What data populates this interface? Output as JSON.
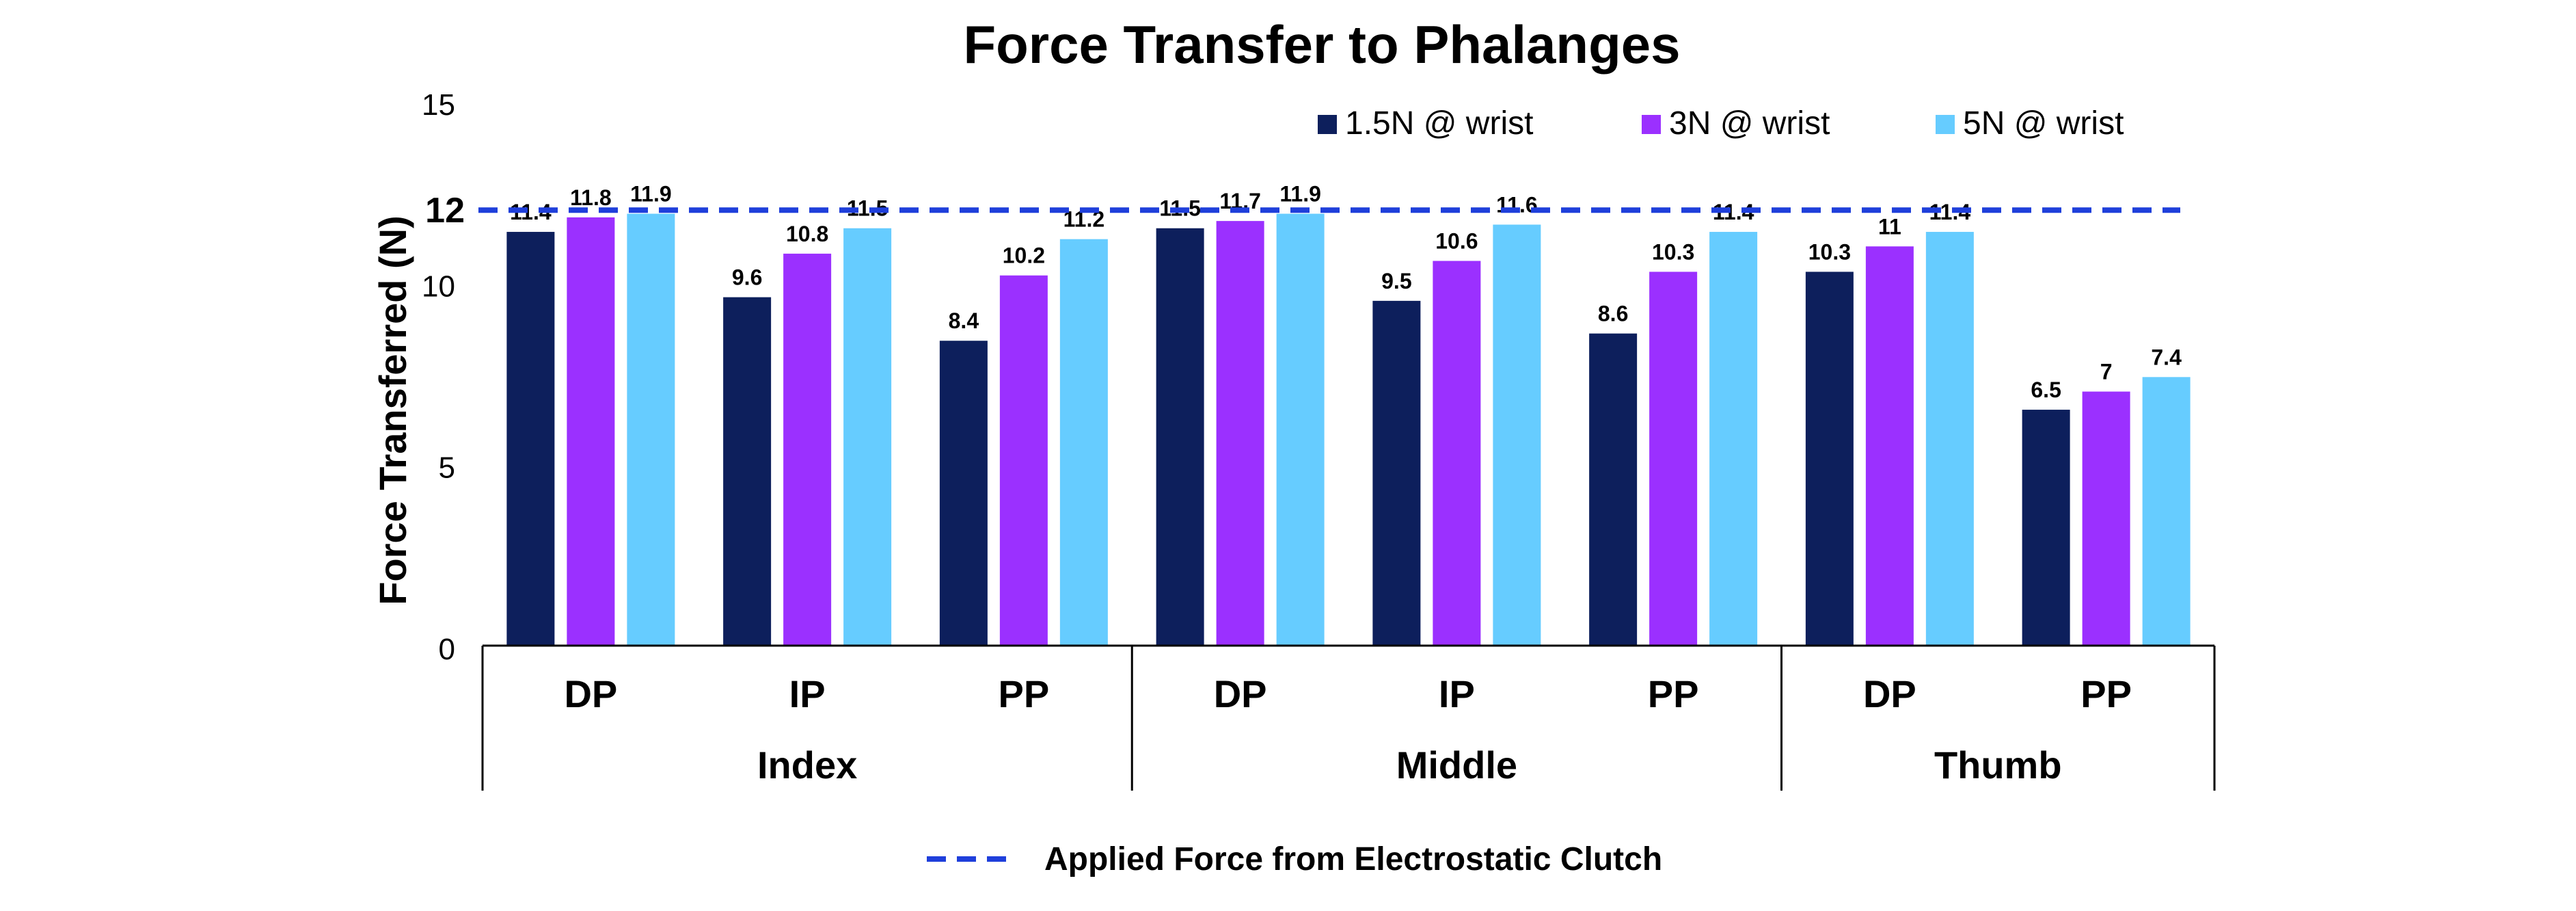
{
  "chart_data": {
    "type": "bar",
    "title": "Force Transfer to Phalanges",
    "ylabel": "Force Transferred (N)",
    "xlabel": "",
    "ylim": [
      0,
      15
    ],
    "yticks": [
      0,
      5,
      10,
      15
    ],
    "grid": false,
    "legend_position": "top-right",
    "groups": [
      {
        "label": "Index",
        "categories": [
          "DP",
          "IP",
          "PP"
        ]
      },
      {
        "label": "Middle",
        "categories": [
          "DP",
          "IP",
          "PP"
        ]
      },
      {
        "label": "Thumb",
        "categories": [
          "DP",
          "PP"
        ]
      }
    ],
    "categories": [
      "DP",
      "IP",
      "PP",
      "DP",
      "IP",
      "PP",
      "DP",
      "PP"
    ],
    "series": [
      {
        "name": "1.5N @ wrist",
        "color": "#0d1f5c",
        "values": [
          11.4,
          9.6,
          8.4,
          11.5,
          9.5,
          8.6,
          10.3,
          6.5
        ]
      },
      {
        "name": "3N @ wrist",
        "color": "#9b30ff",
        "values": [
          11.8,
          10.8,
          10.2,
          11.7,
          10.6,
          10.3,
          11,
          7
        ]
      },
      {
        "name": "5N @ wrist",
        "color": "#66ccff",
        "values": [
          11.9,
          11.5,
          11.2,
          11.9,
          11.6,
          11.4,
          11.4,
          7.4
        ]
      }
    ],
    "reference_line": {
      "value": 12,
      "label": "12",
      "name": "Applied Force from Electrostatic Clutch",
      "color": "#1f3fdb",
      "style": "dashed"
    }
  }
}
